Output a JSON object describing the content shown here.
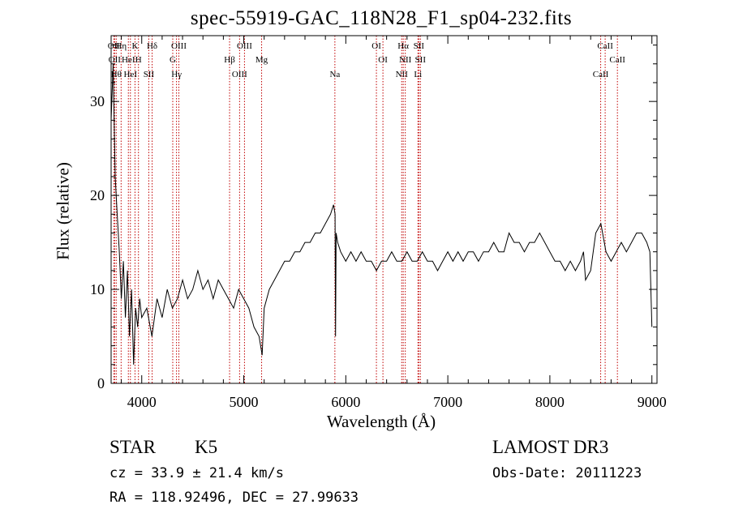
{
  "chart_data": {
    "type": "line",
    "title": "spec-55919-GAC_118N28_F1_sp04-232.fits",
    "xlabel": "Wavelength (Å)",
    "ylabel": "Flux (relative)",
    "xlim": [
      3700,
      9050
    ],
    "ylim": [
      0,
      37
    ],
    "x_ticks": [
      4000,
      5000,
      6000,
      7000,
      8000,
      9000
    ],
    "y_ticks": [
      0,
      10,
      20,
      30
    ],
    "x_tick_labels": [
      "4000",
      "5000",
      "6000",
      "7000",
      "8000",
      "9000"
    ],
    "y_tick_labels": [
      "0",
      "10",
      "20",
      "30"
    ],
    "series": [
      {
        "x": [
          3700,
          3720,
          3740,
          3760,
          3780,
          3800,
          3820,
          3840,
          3860,
          3880,
          3900,
          3920,
          3940,
          3960,
          3980,
          4000,
          4050,
          4100,
          4150,
          4200,
          4250,
          4300,
          4350,
          4400,
          4450,
          4500,
          4550,
          4600,
          4650,
          4700,
          4750,
          4800,
          4850,
          4900,
          4950,
          5000,
          5050,
          5100,
          5150,
          5180,
          5200,
          5250,
          5300,
          5350,
          5400,
          5450,
          5500,
          5550,
          5600,
          5650,
          5700,
          5750,
          5800,
          5850,
          5880,
          5895,
          5900,
          5905,
          5920,
          5950,
          6000,
          6050,
          6100,
          6150,
          6200,
          6250,
          6300,
          6350,
          6400,
          6450,
          6500,
          6550,
          6600,
          6650,
          6700,
          6750,
          6800,
          6850,
          6900,
          6950,
          7000,
          7050,
          7100,
          7150,
          7200,
          7250,
          7300,
          7350,
          7400,
          7450,
          7500,
          7550,
          7600,
          7650,
          7700,
          7750,
          7800,
          7850,
          7900,
          7950,
          8000,
          8050,
          8100,
          8150,
          8200,
          8250,
          8300,
          8330,
          8350,
          8400,
          8450,
          8500,
          8550,
          8600,
          8650,
          8700,
          8750,
          8800,
          8850,
          8900,
          8950,
          8980,
          9000
        ],
        "y": [
          28,
          34,
          22,
          18,
          14,
          9,
          13,
          7,
          12,
          5,
          10,
          2,
          8,
          6,
          9,
          7,
          8,
          5,
          9,
          7,
          10,
          8,
          9,
          11,
          9,
          10,
          12,
          10,
          11,
          9,
          11,
          10,
          9,
          8,
          10,
          9,
          8,
          6,
          5,
          3,
          8,
          10,
          11,
          12,
          13,
          13,
          14,
          14,
          15,
          15,
          16,
          16,
          17,
          18,
          19,
          18,
          5,
          16,
          15,
          14,
          13,
          14,
          13,
          14,
          13,
          13,
          12,
          13,
          13,
          14,
          13,
          13,
          14,
          13,
          13,
          14,
          13,
          13,
          12,
          13,
          14,
          13,
          14,
          13,
          14,
          14,
          13,
          14,
          14,
          15,
          14,
          14,
          16,
          15,
          15,
          14,
          15,
          15,
          16,
          15,
          14,
          13,
          13,
          12,
          13,
          12,
          13,
          14,
          11,
          12,
          16,
          17,
          14,
          13,
          14,
          15,
          14,
          15,
          16,
          16,
          15,
          14,
          6
        ]
      }
    ],
    "lines": [
      {
        "x": 3727,
        "label": "OII"
      },
      {
        "x": 3734,
        "label": "OII"
      },
      {
        "x": 3750,
        "label": "Hθ"
      },
      {
        "x": 3798,
        "label": "Hη"
      },
      {
        "x": 3869,
        "label": "HeI"
      },
      {
        "x": 3889,
        "label": "HeI"
      },
      {
        "x": 3934,
        "label": "K"
      },
      {
        "x": 3968,
        "label": "H"
      },
      {
        "x": 4069,
        "label": "SII"
      },
      {
        "x": 4102,
        "label": "Hδ"
      },
      {
        "x": 4304,
        "label": "G"
      },
      {
        "x": 4341,
        "label": "Hγ"
      },
      {
        "x": 4364,
        "label": "OIII"
      },
      {
        "x": 4861,
        "label": "Hβ"
      },
      {
        "x": 4959,
        "label": "OIII"
      },
      {
        "x": 5007,
        "label": "OIII"
      },
      {
        "x": 5175,
        "label": "Mg"
      },
      {
        "x": 5893,
        "label": "Na"
      },
      {
        "x": 6300,
        "label": "OI"
      },
      {
        "x": 6364,
        "label": "OI"
      },
      {
        "x": 6548,
        "label": "NII"
      },
      {
        "x": 6563,
        "label": "Hα"
      },
      {
        "x": 6583,
        "label": "NII"
      },
      {
        "x": 6707,
        "label": "Li"
      },
      {
        "x": 6716,
        "label": "SII"
      },
      {
        "x": 6731,
        "label": "SII"
      },
      {
        "x": 8498,
        "label": "CaII"
      },
      {
        "x": 8542,
        "label": "CaII"
      },
      {
        "x": 8662,
        "label": "CaII"
      }
    ]
  },
  "footer": {
    "class": "STAR",
    "subclass": "K5",
    "cz": "cz = 33.9 ± 21.4 km/s",
    "coords": "RA = 118.92496, DEC =  27.99633",
    "survey": "LAMOST DR3",
    "obs_date": "Obs-Date: 20111223"
  },
  "colors": {
    "line_marker": "#c00000",
    "spectrum": "#000000"
  }
}
